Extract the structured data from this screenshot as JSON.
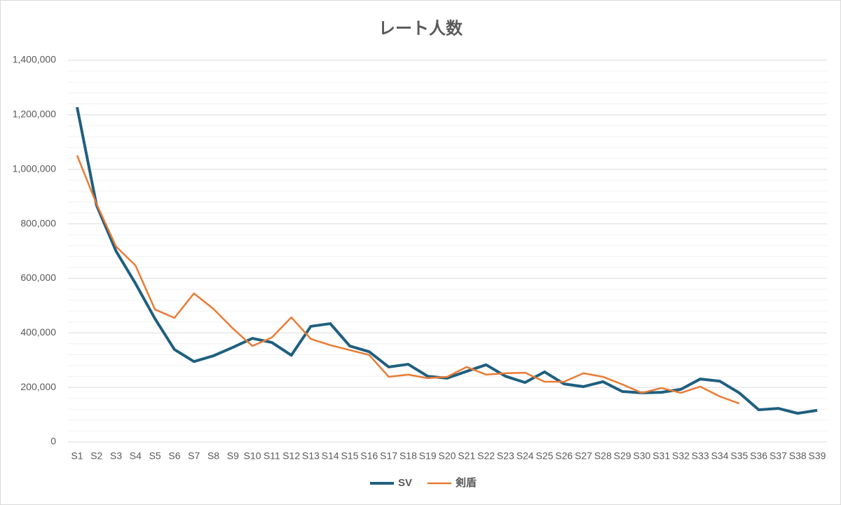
{
  "chart_data": {
    "type": "line",
    "title": "レート人数",
    "categories": [
      "S1",
      "S2",
      "S3",
      "S4",
      "S5",
      "S6",
      "S7",
      "S8",
      "S9",
      "S10",
      "S11",
      "S12",
      "S13",
      "S14",
      "S15",
      "S16",
      "S17",
      "S18",
      "S19",
      "S20",
      "S21",
      "S22",
      "S23",
      "S24",
      "S25",
      "S26",
      "S27",
      "S28",
      "S29",
      "S30",
      "S31",
      "S32",
      "S33",
      "S34",
      "S35",
      "S36",
      "S37",
      "S38",
      "S39"
    ],
    "series": [
      {
        "name": "SV",
        "color": "#1f5f7f",
        "values": [
          1228000,
          868000,
          700000,
          581000,
          452000,
          339000,
          295000,
          316000,
          347000,
          380000,
          365000,
          318000,
          424000,
          434000,
          352000,
          331000,
          275000,
          285000,
          241000,
          234000,
          259000,
          283000,
          241000,
          218000,
          257000,
          213000,
          203000,
          221000,
          185000,
          180000,
          182000,
          193000,
          231000,
          223000,
          180000,
          118000,
          123000,
          105000,
          116000
        ]
      },
      {
        "name": "剣盾",
        "color": "#e97b35",
        "values": [
          1051000,
          873000,
          717000,
          647000,
          486000,
          455000,
          545000,
          488000,
          416000,
          352000,
          383000,
          457000,
          378000,
          355000,
          337000,
          319000,
          239000,
          247000,
          234000,
          239000,
          275000,
          247000,
          252000,
          254000,
          221000,
          221000,
          252000,
          239000,
          211000,
          180000,
          198000,
          180000,
          203000,
          167000,
          141000,
          null,
          null,
          null,
          null
        ]
      }
    ],
    "ylim": [
      0,
      1400000
    ],
    "yticks": [
      0,
      {
        "value": 200000,
        "label": "200,000"
      },
      {
        "value": 400000,
        "label": "400,000"
      },
      {
        "value": 600000,
        "label": "600,000"
      },
      {
        "value": 800000,
        "label": "800,000"
      },
      {
        "value": 1000000,
        "label": "1,000,000"
      },
      {
        "value": 1200000,
        "label": "1,200,000"
      },
      {
        "value": 1400000,
        "label": "1,400,000"
      }
    ],
    "minor_yticks": [
      40000,
      80000,
      120000,
      160000,
      240000,
      280000,
      320000,
      360000,
      440000,
      480000,
      520000,
      560000,
      640000,
      680000,
      720000,
      760000,
      840000,
      880000,
      920000,
      960000,
      1040000,
      1080000,
      1120000,
      1160000,
      1240000,
      1280000,
      1320000,
      1360000
    ],
    "grid": true,
    "legend": "bottom"
  }
}
